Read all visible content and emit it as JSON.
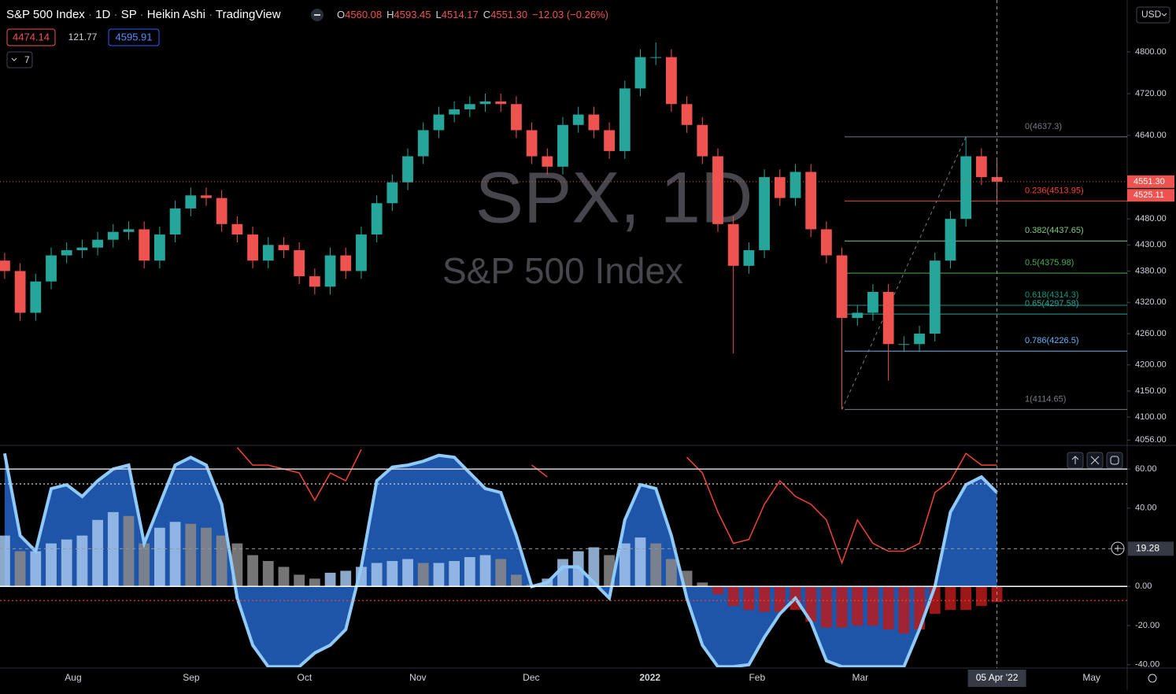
{
  "header": {
    "symbol": "S&P 500 Index",
    "interval": "1D",
    "exchange": "SP",
    "style": "Heikin Ashi",
    "source": "TradingView",
    "ohlc": [
      {
        "label": "O",
        "value": "4560.08"
      },
      {
        "label": "H",
        "value": "4593.45"
      },
      {
        "label": "L",
        "value": "4514.17"
      },
      {
        "label": "C",
        "value": "4551.30"
      }
    ],
    "change": "−12.03 (−0.26%)",
    "boxes": [
      "4474.14",
      "121.77",
      "4595.91"
    ],
    "indicators_count": "7",
    "currency": "USD"
  },
  "watermark": {
    "title": "SPX, 1D",
    "subtitle": "S&P 500 Index"
  },
  "crosshair": {
    "x": 64,
    "label": "05 Apr '22",
    "value": 19.28
  },
  "chart_data": [
    {
      "type": "candlestick",
      "up_color": "#26a69a",
      "down_color": "#ef5350",
      "open": [
        4400,
        4380,
        4300,
        4360,
        4410,
        4420,
        4425,
        4440,
        4455,
        4460,
        4400,
        4450,
        4500,
        4525,
        4520,
        4470,
        4450,
        4400,
        4430,
        4420,
        4370,
        4350,
        4410,
        4380,
        4450,
        4510,
        4550,
        4600,
        4650,
        4680,
        4690,
        4700,
        4705,
        4700,
        4650,
        4600,
        4580,
        4660,
        4680,
        4650,
        4610,
        4730,
        4790,
        4790,
        4700,
        4660,
        4600,
        4470,
        4390,
        4420,
        4560,
        4520,
        4570,
        4460,
        4410,
        4290,
        4300,
        4340,
        4240,
        4240,
        4260,
        4400,
        4480,
        4600,
        4560.08
      ],
      "high": [
        4415,
        4395,
        4375,
        4425,
        4435,
        4440,
        4455,
        4470,
        4475,
        4475,
        4465,
        4515,
        4540,
        4540,
        4535,
        4485,
        4465,
        4445,
        4445,
        4435,
        4385,
        4425,
        4425,
        4465,
        4525,
        4565,
        4615,
        4665,
        4695,
        4705,
        4715,
        4720,
        4720,
        4715,
        4665,
        4615,
        4675,
        4695,
        4695,
        4665,
        4745,
        4805,
        4818,
        4805,
        4715,
        4675,
        4615,
        4485,
        4435,
        4575,
        4575,
        4585,
        4585,
        4475,
        4425,
        4315,
        4355,
        4355,
        4255,
        4275,
        4415,
        4495,
        4637.3,
        4615,
        4593.45
      ],
      "low": [
        4365,
        4285,
        4285,
        4345,
        4395,
        4405,
        4410,
        4425,
        4440,
        4385,
        4385,
        4435,
        4485,
        4505,
        4455,
        4435,
        4385,
        4385,
        4405,
        4355,
        4335,
        4335,
        4365,
        4365,
        4435,
        4495,
        4535,
        4585,
        4635,
        4665,
        4675,
        4685,
        4685,
        4635,
        4585,
        4565,
        4565,
        4645,
        4635,
        4595,
        4595,
        4715,
        4775,
        4685,
        4645,
        4585,
        4455,
        4222,
        4375,
        4405,
        4505,
        4505,
        4445,
        4395,
        4114.65,
        4275,
        4285,
        4170,
        4225,
        4225,
        4245,
        4385,
        4465,
        4545,
        4514.17
      ],
      "close": [
        4380,
        4300,
        4360,
        4410,
        4420,
        4425,
        4440,
        4455,
        4460,
        4400,
        4450,
        4500,
        4525,
        4520,
        4470,
        4450,
        4400,
        4430,
        4420,
        4370,
        4350,
        4410,
        4380,
        4450,
        4510,
        4550,
        4600,
        4650,
        4680,
        4690,
        4700,
        4705,
        4700,
        4650,
        4600,
        4580,
        4660,
        4680,
        4650,
        4610,
        4730,
        4790,
        4790,
        4700,
        4660,
        4600,
        4470,
        4390,
        4420,
        4560,
        4520,
        4570,
        4460,
        4410,
        4290,
        4300,
        4340,
        4240,
        4240,
        4260,
        4400,
        4480,
        4600,
        4560,
        4551.3
      ],
      "xlim": [
        -0.3,
        72.4
      ],
      "ylim": [
        4050.4,
        4899.5
      ],
      "yticks": [
        {
          "value": 4056,
          "label": "4056.00"
        },
        {
          "value": 4100,
          "label": "4100.00"
        },
        {
          "value": 4150,
          "label": "4150.00"
        },
        {
          "value": 4200,
          "label": "4200.00"
        },
        {
          "value": 4260,
          "label": "4260.00"
        },
        {
          "value": 4320,
          "label": "4320.00"
        },
        {
          "value": 4380,
          "label": "4380.00"
        },
        {
          "value": 4430,
          "label": "4430.00"
        },
        {
          "value": 4480,
          "label": "4480.00"
        },
        {
          "value": 4640,
          "label": "4640.00"
        },
        {
          "value": 4720,
          "label": "4720.00"
        },
        {
          "value": 4800,
          "label": "4800.00"
        }
      ],
      "xticks": [
        {
          "value": 4.42,
          "label": "Aug"
        },
        {
          "value": 12.03,
          "label": "Sep"
        },
        {
          "value": 19.34,
          "label": "Oct"
        },
        {
          "value": 26.65,
          "label": "Nov"
        },
        {
          "value": 33.96,
          "label": "Dec"
        },
        {
          "value": 41.62,
          "label": "2022"
        },
        {
          "value": 48.53,
          "label": "Feb"
        },
        {
          "value": 55.18,
          "label": "Mar"
        },
        {
          "value": 70.1,
          "label": "May"
        }
      ],
      "price_tags": [
        {
          "value": 4551.3,
          "label": "4551.30",
          "color": "#ef5350"
        },
        {
          "value": 4525.11,
          "label": "4525.11",
          "color": "#ef5350"
        }
      ],
      "fib": [
        {
          "label": "0(4637.3)",
          "value": 4637.3,
          "color": "#787b86"
        },
        {
          "label": "0.236(4513.95)",
          "value": 4513.95,
          "color": "#f44336"
        },
        {
          "label": "0.382(4437.65)",
          "value": 4437.65,
          "color": "#81c784"
        },
        {
          "label": "0.5(4375.98)",
          "value": 4375.98,
          "color": "#4caf50"
        },
        {
          "label": "0.618(4314.3)",
          "value": 4314.3,
          "color": "#089981"
        },
        {
          "label": "0.65(4297.58)",
          "value": 4297.58,
          "color": "#26a69a"
        },
        {
          "label": "0.786(4226.5)",
          "value": 4226.5,
          "color": "#64b5f6"
        },
        {
          "label": "1(4114.65)",
          "value": 4114.65,
          "color": "#787b86"
        }
      ]
    },
    {
      "type": "oscillator",
      "wave": [
        68,
        26,
        18,
        50,
        52,
        46,
        54,
        60,
        62,
        22,
        42,
        62,
        66,
        62,
        42,
        -6,
        -30,
        -41,
        -41,
        -41,
        -34,
        -30,
        -22,
        10,
        54,
        61,
        62,
        64,
        67,
        66,
        58,
        50,
        48,
        26,
        0,
        2,
        10,
        10,
        2,
        -6,
        34,
        52,
        50,
        26,
        -6,
        -30,
        -41,
        -41,
        -40,
        -26,
        -14,
        -6,
        -18,
        -38,
        -41,
        -41,
        -41,
        -41,
        -41,
        -22,
        0,
        38,
        52,
        56,
        48
      ],
      "histogram": [
        26,
        18,
        18,
        22,
        24,
        26,
        34,
        38,
        36,
        22,
        30,
        33,
        32,
        30,
        26,
        22,
        16,
        13,
        10,
        6,
        4,
        7,
        8,
        10,
        12,
        13,
        14,
        12,
        12,
        13,
        15,
        16,
        14,
        6,
        1,
        4,
        14,
        18,
        20,
        16,
        22,
        25,
        22,
        14,
        8,
        2,
        -4,
        -10,
        -12,
        -13,
        -13,
        -12,
        -18,
        -21,
        -21,
        -20,
        -20,
        -22,
        -24,
        -22,
        -14,
        -12,
        -12,
        -10,
        -8
      ],
      "signal": [
        null,
        null,
        null,
        null,
        null,
        null,
        null,
        null,
        null,
        null,
        null,
        null,
        null,
        null,
        null,
        71,
        62,
        62,
        60,
        58,
        44,
        58,
        54,
        70,
        null,
        null,
        null,
        null,
        null,
        null,
        null,
        null,
        null,
        null,
        62,
        56,
        null,
        null,
        null,
        null,
        null,
        null,
        null,
        null,
        66,
        58,
        38,
        22,
        24,
        42,
        54,
        46,
        42,
        34,
        12,
        34,
        22,
        18,
        18,
        22,
        48,
        54,
        68,
        62,
        62
      ],
      "colors": {
        "wave_fill": "#1e55a8",
        "wave_edge": "#90caf9",
        "rising": "#a5c5ef",
        "falling": "#8a8a8a",
        "negative": "#b71c1c",
        "signal": "#f44336"
      },
      "ylim": [
        -41.3,
        71.3
      ],
      "yticks": [
        {
          "value": 60,
          "label": "60.00"
        },
        {
          "value": 40,
          "label": "40.00"
        },
        {
          "value": 0,
          "label": "0.00"
        },
        {
          "value": -20,
          "label": "-20.00"
        },
        {
          "value": -40,
          "label": "-40.00"
        }
      ],
      "levels": [
        {
          "value": 60,
          "color": "#d1d4dc",
          "dash": "none"
        },
        {
          "value": 52.4,
          "color": "#d1d4dc",
          "dash": "2 3"
        },
        {
          "value": 0,
          "color": "#ffffff",
          "dash": "none"
        },
        {
          "value": -7.2,
          "color": "#f44336",
          "dash": "2 3"
        }
      ]
    }
  ]
}
